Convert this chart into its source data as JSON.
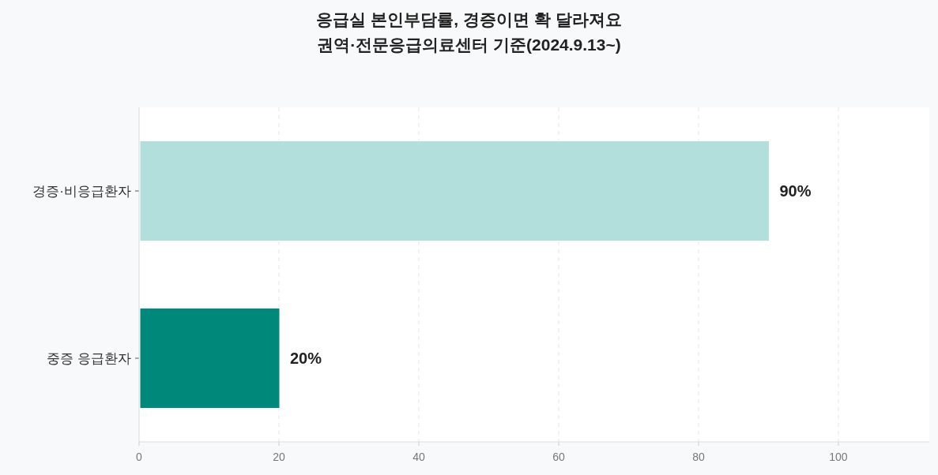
{
  "chart_data": {
    "type": "bar",
    "orientation": "horizontal",
    "title": "응급실 본인부담률, 경증이면 확 달라져요",
    "subtitle": "권역·전문응급의료센터 기준(2024.9.13~)",
    "categories": [
      "경증·비응급환자",
      "중증 응급환자"
    ],
    "values": [
      90,
      20
    ],
    "colors": [
      "#b2dfdb",
      "#00897b"
    ],
    "value_labels": [
      "90%",
      "20%"
    ],
    "xlim": [
      0,
      113
    ],
    "xticks": [
      0,
      20,
      40,
      60,
      80,
      100
    ],
    "grid": "x"
  }
}
